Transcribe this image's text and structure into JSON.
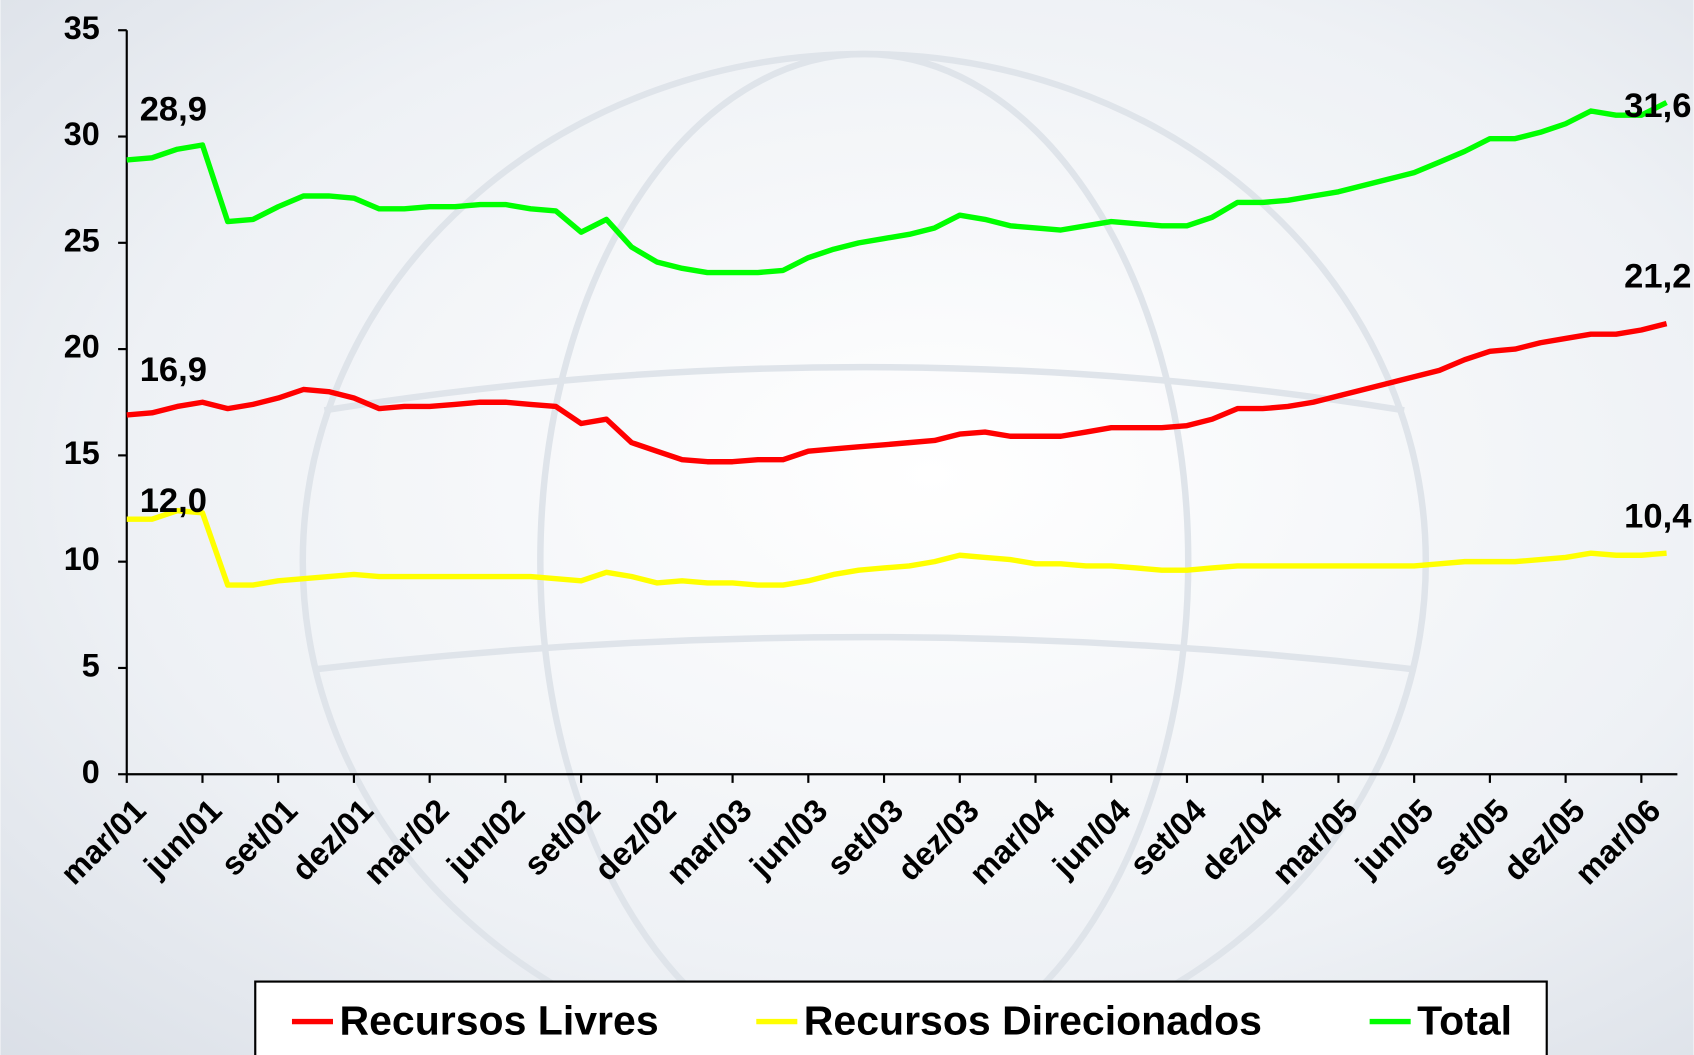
{
  "chart_data": {
    "type": "line",
    "categories": [
      "mar/01",
      null,
      null,
      "jun/01",
      null,
      null,
      "set/01",
      null,
      null,
      "dez/01",
      null,
      null,
      "mar/02",
      null,
      null,
      "jun/02",
      null,
      null,
      "set/02",
      null,
      null,
      "dez/02",
      null,
      null,
      "mar/03",
      null,
      null,
      "jun/03",
      null,
      null,
      "set/03",
      null,
      null,
      "dez/03",
      null,
      null,
      "mar/04",
      null,
      null,
      "jun/04",
      null,
      null,
      "set/04",
      null,
      null,
      "dez/04",
      null,
      null,
      "mar/05",
      null,
      null,
      "jun/05",
      null,
      null,
      "set/05",
      null,
      null,
      "dez/05",
      null,
      null,
      "mar/06",
      null
    ],
    "series": [
      {
        "name": "Recursos Livres",
        "color": "#ff0000",
        "values": [
          16.9,
          17.0,
          17.3,
          17.5,
          17.2,
          17.4,
          17.7,
          18.1,
          18.0,
          17.7,
          17.2,
          17.3,
          17.3,
          17.4,
          17.5,
          17.5,
          17.4,
          17.3,
          16.5,
          16.7,
          15.6,
          15.2,
          14.8,
          14.7,
          14.7,
          14.8,
          14.8,
          15.2,
          15.3,
          15.4,
          15.5,
          15.6,
          15.7,
          16.0,
          16.1,
          15.9,
          15.9,
          15.9,
          16.1,
          16.3,
          16.3,
          16.3,
          16.4,
          16.7,
          17.2,
          17.2,
          17.3,
          17.5,
          17.8,
          18.1,
          18.4,
          18.7,
          19.0,
          19.5,
          19.9,
          20.0,
          20.3,
          20.5,
          20.7,
          20.7,
          20.9,
          21.2
        ],
        "value_labels": [
          "16,9",
          null,
          null,
          null,
          null,
          null,
          null,
          null,
          null,
          null,
          null,
          null,
          null,
          null,
          null,
          null,
          null,
          null,
          null,
          null,
          null,
          null,
          null,
          null,
          null,
          null,
          null,
          null,
          null,
          null,
          null,
          null,
          null,
          null,
          null,
          null,
          null,
          null,
          null,
          null,
          null,
          null,
          null,
          null,
          null,
          null,
          null,
          null,
          null,
          null,
          null,
          null,
          null,
          null,
          null,
          null,
          null,
          null,
          null,
          null,
          null,
          "21,2"
        ]
      },
      {
        "name": "Recursos Direcionados",
        "color": "#ffff00",
        "values": [
          12.0,
          12.0,
          12.4,
          12.3,
          8.9,
          8.9,
          9.1,
          9.2,
          9.3,
          9.4,
          9.3,
          9.3,
          9.3,
          9.3,
          9.3,
          9.3,
          9.3,
          9.2,
          9.1,
          9.5,
          9.3,
          9.0,
          9.1,
          9.0,
          9.0,
          8.9,
          8.9,
          9.1,
          9.4,
          9.6,
          9.7,
          9.8,
          10.0,
          10.3,
          10.2,
          10.1,
          9.9,
          9.9,
          9.8,
          9.8,
          9.7,
          9.6,
          9.6,
          9.7,
          9.8,
          9.8,
          9.8,
          9.8,
          9.8,
          9.8,
          9.8,
          9.8,
          9.9,
          10.0,
          10.0,
          10.0,
          10.1,
          10.2,
          10.4,
          10.3,
          10.3,
          10.4
        ],
        "value_labels": [
          "12,0",
          null,
          null,
          null,
          null,
          null,
          null,
          null,
          null,
          null,
          null,
          null,
          null,
          null,
          null,
          null,
          null,
          null,
          null,
          null,
          null,
          null,
          null,
          null,
          null,
          null,
          null,
          null,
          null,
          null,
          null,
          null,
          null,
          null,
          null,
          null,
          null,
          null,
          null,
          null,
          null,
          null,
          null,
          null,
          null,
          null,
          null,
          null,
          null,
          null,
          null,
          null,
          null,
          null,
          null,
          null,
          null,
          null,
          null,
          null,
          null,
          "10,4"
        ]
      },
      {
        "name": "Total",
        "color": "#00ff00",
        "values": [
          28.9,
          29.0,
          29.4,
          29.6,
          26.0,
          26.1,
          26.7,
          27.2,
          27.2,
          27.1,
          26.6,
          26.6,
          26.7,
          26.7,
          26.8,
          26.8,
          26.6,
          26.5,
          25.5,
          26.1,
          24.8,
          24.1,
          23.8,
          23.6,
          23.6,
          23.6,
          23.7,
          24.3,
          24.7,
          25.0,
          25.2,
          25.4,
          25.7,
          26.3,
          26.1,
          25.8,
          25.7,
          25.6,
          25.8,
          26.0,
          25.9,
          25.8,
          25.8,
          26.2,
          26.9,
          26.9,
          27.0,
          27.2,
          27.4,
          27.7,
          28.0,
          28.3,
          28.8,
          29.3,
          29.9,
          29.9,
          30.2,
          30.6,
          31.2,
          31.0,
          31.0,
          31.6
        ],
        "value_labels": [
          "28,9",
          null,
          null,
          null,
          null,
          null,
          null,
          null,
          null,
          null,
          null,
          null,
          null,
          null,
          null,
          null,
          null,
          null,
          null,
          null,
          null,
          null,
          null,
          null,
          null,
          null,
          null,
          null,
          null,
          null,
          null,
          null,
          null,
          null,
          null,
          null,
          null,
          null,
          null,
          null,
          null,
          null,
          null,
          null,
          null,
          null,
          null,
          null,
          null,
          null,
          null,
          null,
          null,
          null,
          null,
          null,
          null,
          null,
          null,
          null,
          null,
          "31,6"
        ]
      }
    ],
    "ylim": [
      0,
      35
    ],
    "yticks": [
      0,
      5,
      10,
      15,
      20,
      25,
      30,
      35
    ],
    "grid": false,
    "legend": "bottom"
  }
}
